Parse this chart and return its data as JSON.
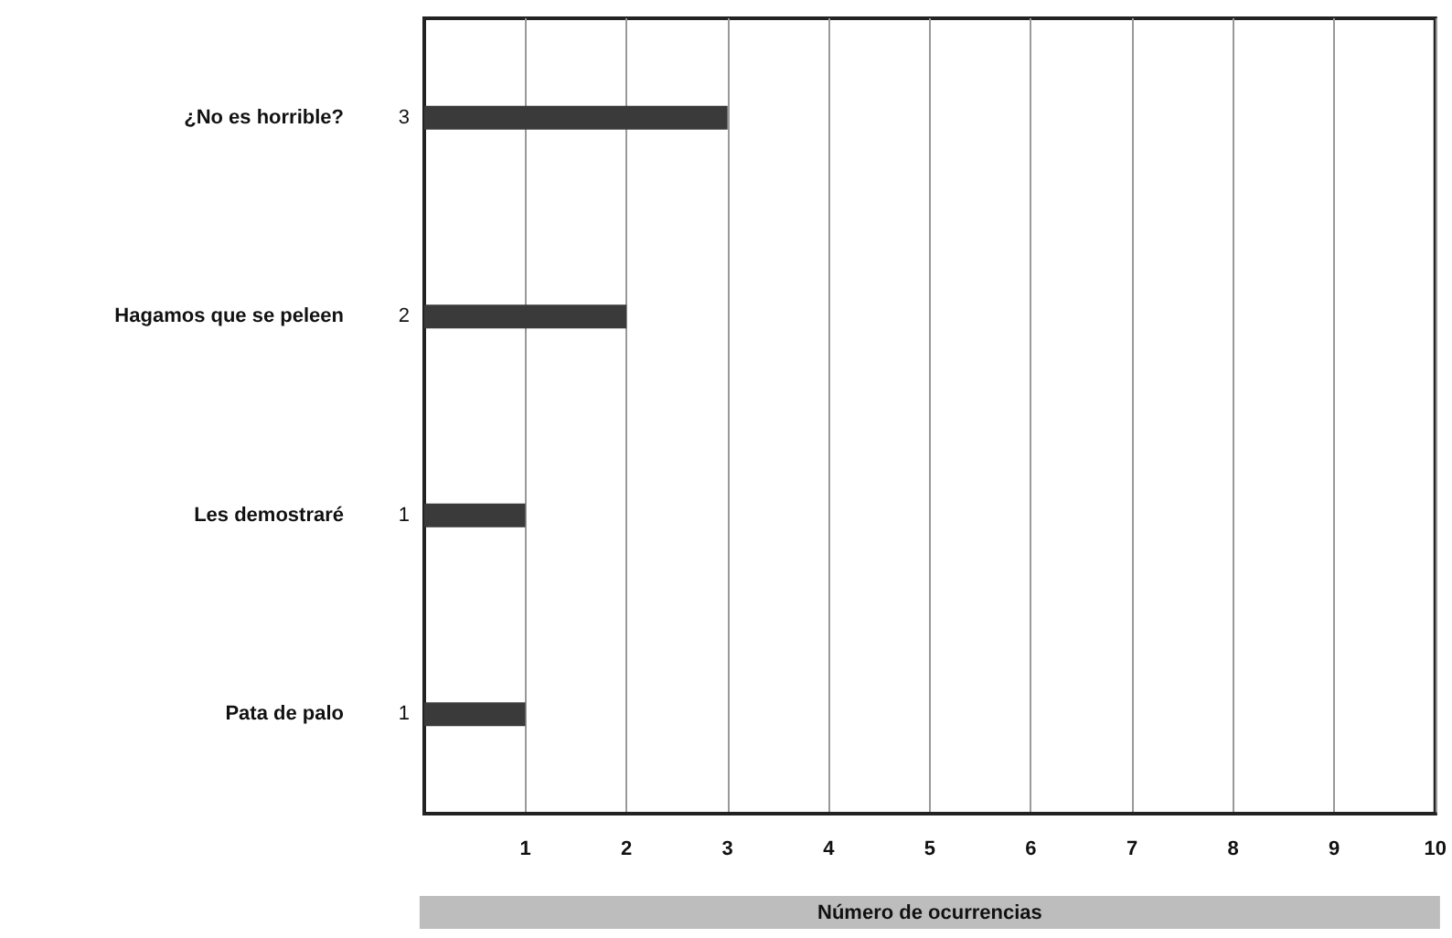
{
  "chart_data": {
    "type": "bar",
    "orientation": "horizontal",
    "categories": [
      "¿No es horrible?",
      "Hagamos que se peleen",
      "Les demostraré",
      "Pata de palo"
    ],
    "values": [
      3,
      2,
      1,
      1
    ],
    "color": "#3a3a3a",
    "data_labels": true,
    "xlabel": "Número de ocurrencias",
    "xlim": [
      0,
      10
    ],
    "xticks": [
      1,
      2,
      3,
      4,
      5,
      6,
      7,
      8,
      9,
      10
    ],
    "grid": "x"
  }
}
